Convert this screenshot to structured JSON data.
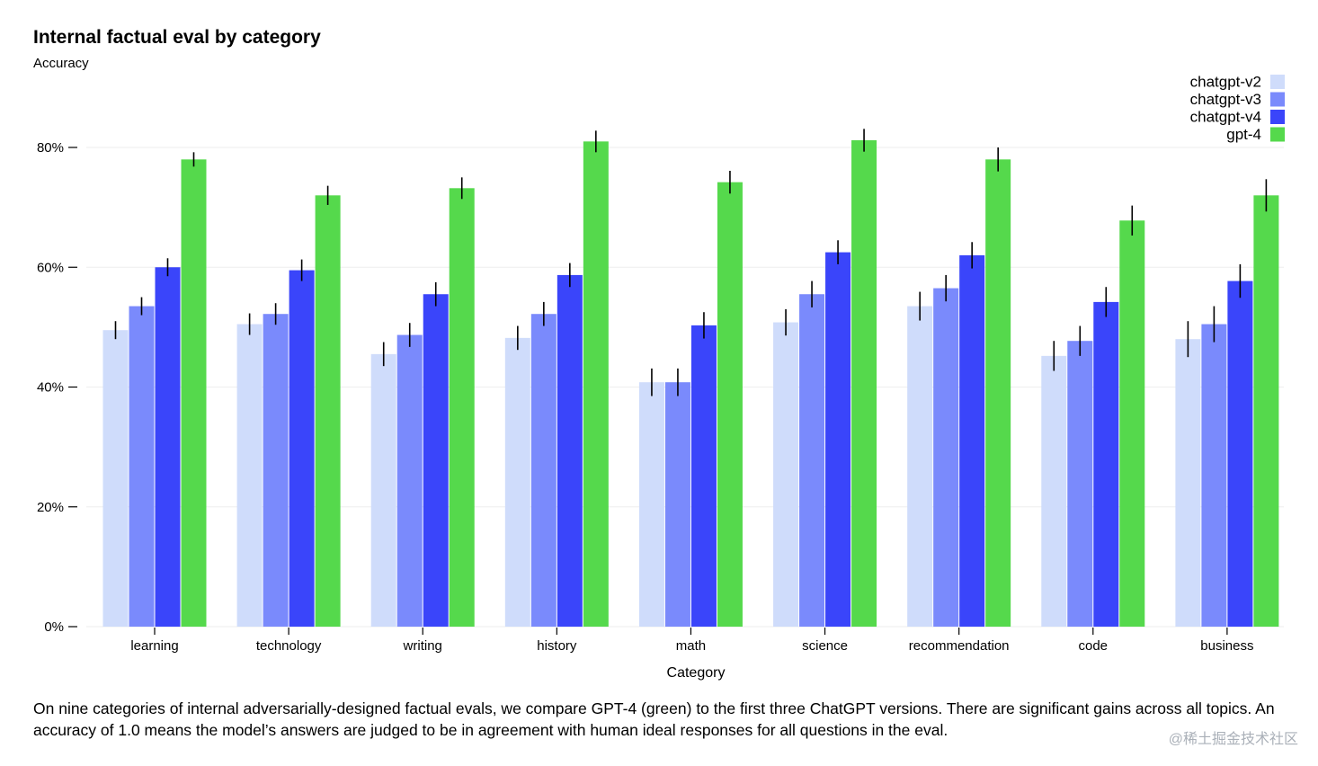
{
  "title": "Internal factual eval by category",
  "subtitle": "Accuracy",
  "caption": "On nine categories of internal adversarially-designed factual evals, we compare GPT-4 (green) to the first three ChatGPT versions. There are significant gains across all topics. An accuracy of 1.0 means the model’s answers are judged to be in agreement with human ideal responses for all questions in the eval.",
  "watermark": "@稀土掘金技术社区",
  "colors": {
    "chatgpt-v2": "#cfdcfb",
    "chatgpt-v3": "#7a8afc",
    "chatgpt-v4": "#3a45fa",
    "gpt-4": "#55d94c"
  },
  "chart_data": {
    "type": "bar",
    "title": "Internal factual eval by category",
    "ylabel": "Accuracy",
    "xlabel": "Category",
    "ylim": [
      0,
      80
    ],
    "yticks": [
      "0%",
      "20%",
      "40%",
      "60%",
      "80%"
    ],
    "grid": true,
    "legend": "top-right",
    "categories": [
      "learning",
      "technology",
      "writing",
      "history",
      "math",
      "science",
      "recommendation",
      "code",
      "business"
    ],
    "series": [
      {
        "name": "chatgpt-v2",
        "values": [
          49.5,
          50.5,
          45.5,
          48.2,
          40.8,
          50.8,
          53.5,
          45.2,
          48.0
        ],
        "errors": [
          1.5,
          1.8,
          2.0,
          2.0,
          2.3,
          2.2,
          2.4,
          2.5,
          3.0
        ]
      },
      {
        "name": "chatgpt-v3",
        "values": [
          53.5,
          52.2,
          48.7,
          52.2,
          40.8,
          55.5,
          56.5,
          47.7,
          50.5
        ],
        "errors": [
          1.5,
          1.8,
          2.0,
          2.0,
          2.3,
          2.2,
          2.2,
          2.5,
          3.0
        ]
      },
      {
        "name": "chatgpt-v4",
        "values": [
          60.0,
          59.5,
          55.5,
          58.7,
          50.3,
          62.5,
          62.0,
          54.2,
          57.7
        ],
        "errors": [
          1.5,
          1.8,
          2.0,
          2.0,
          2.2,
          2.0,
          2.2,
          2.5,
          2.8
        ]
      },
      {
        "name": "gpt-4",
        "values": [
          78.0,
          72.0,
          73.2,
          81.0,
          74.2,
          81.2,
          78.0,
          67.8,
          72.0
        ],
        "errors": [
          1.2,
          1.6,
          1.8,
          1.8,
          1.9,
          1.9,
          2.0,
          2.5,
          2.7
        ]
      }
    ]
  }
}
